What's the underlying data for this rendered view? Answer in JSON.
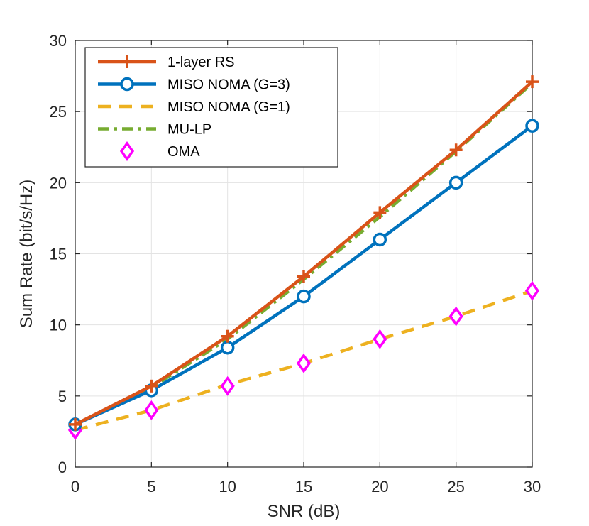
{
  "chart_data": {
    "type": "line",
    "title": "",
    "xlabel": "SNR (dB)",
    "ylabel": "Sum Rate (bit/s/Hz)",
    "xlim": [
      0,
      30
    ],
    "ylim": [
      0,
      30
    ],
    "xticks": [
      0,
      5,
      10,
      15,
      20,
      25,
      30
    ],
    "yticks": [
      0,
      5,
      10,
      15,
      20,
      25,
      30
    ],
    "grid": true,
    "legend_position": "top-left",
    "x": [
      0,
      5,
      10,
      15,
      20,
      25,
      30
    ],
    "series": [
      {
        "name": "1-layer RS",
        "values": [
          3.0,
          5.7,
          9.2,
          13.4,
          17.9,
          22.3,
          27.1
        ],
        "color": "#D95319",
        "line": "solid",
        "marker": "plus"
      },
      {
        "name": "MISO NOMA (G=3)",
        "values": [
          3.0,
          5.4,
          8.4,
          12.0,
          16.0,
          20.0,
          24.0
        ],
        "color": "#0072BD",
        "line": "solid",
        "marker": "circle"
      },
      {
        "name": "MISO NOMA (G=1)",
        "values": [
          2.6,
          4.0,
          5.8,
          7.3,
          9.0,
          10.6,
          12.4
        ],
        "color": "#EDB120",
        "line": "dashed",
        "marker": "none"
      },
      {
        "name": "MU-LP",
        "values": [
          3.0,
          5.6,
          9.0,
          13.2,
          17.6,
          22.2,
          27.0
        ],
        "color": "#77AC30",
        "line": "dashdot",
        "marker": "none"
      },
      {
        "name": "OMA",
        "values": [
          2.6,
          4.0,
          5.7,
          7.3,
          9.0,
          10.6,
          12.4
        ],
        "color": "#FF00FF",
        "line": "none",
        "marker": "diamond"
      }
    ]
  }
}
